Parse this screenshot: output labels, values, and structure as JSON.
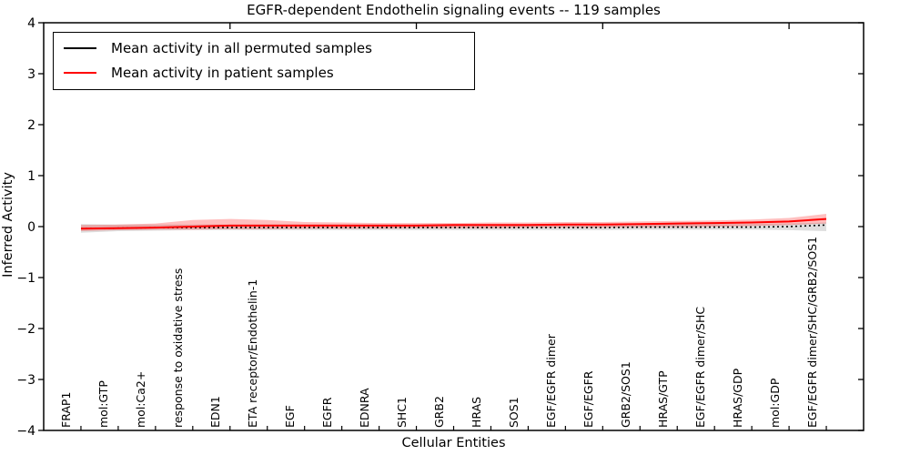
{
  "title": "EGFR-dependent Endothelin signaling events -- 119 samples",
  "legend": {
    "items": [
      {
        "label": "Mean activity in all permuted samples",
        "color": "#000000"
      },
      {
        "label": "Mean activity in patient samples",
        "color": "#ff0000"
      }
    ],
    "position": "upper left"
  },
  "axes": {
    "xlabel": "Cellular Entities",
    "ylabel": "Inferred Activity",
    "ytick_labels": [
      "4",
      "3",
      "2",
      "1",
      "0",
      "−1",
      "−2",
      "−3",
      "−4"
    ]
  },
  "chart_data": {
    "type": "line",
    "title": "EGFR-dependent Endothelin signaling events -- 119 samples",
    "xlabel": "Cellular Entities",
    "ylabel": "Inferred Activity",
    "ylim": [
      -4,
      4
    ],
    "yticks": [
      4,
      3,
      2,
      1,
      0,
      -1,
      -2,
      -3,
      -4
    ],
    "xlim": [
      0,
      22
    ],
    "grid": false,
    "legend_position": "upper left",
    "categories": [
      "FRAP1",
      "mol:GTP",
      "mol:Ca2+",
      "response to oxidative stress",
      "EDN1",
      "ETA receptor/Endothelin-1",
      "EGF",
      "EGFR",
      "EDNRA",
      "SHC1",
      "GRB2",
      "HRAS",
      "SOS1",
      "EGF/EGFR dimer",
      "EGF/EGFR",
      "GRB2/SOS1",
      "HRAS/GTP",
      "EGF/EGFR dimer/SHC",
      "HRAS/GDP",
      "mol:GDP",
      "EGF/EGFR dimer/SHC/GRB2/SOS1"
    ],
    "x_positions": [
      1,
      2,
      3,
      4,
      5,
      6,
      7,
      8,
      9,
      10,
      11,
      12,
      13,
      14,
      15,
      16,
      17,
      18,
      19,
      20,
      21
    ],
    "top_ticks_x": [
      5,
      10,
      15,
      20
    ],
    "series": [
      {
        "name": "Mean activity in all permuted samples",
        "color": "#000000",
        "style": "dotted",
        "values": [
          -0.04,
          -0.03,
          -0.02,
          -0.02,
          -0.02,
          -0.02,
          -0.02,
          -0.02,
          -0.02,
          -0.02,
          -0.02,
          -0.02,
          -0.02,
          -0.02,
          -0.02,
          -0.01,
          -0.01,
          -0.01,
          -0.01,
          0.0,
          0.03
        ]
      },
      {
        "name": "Mean activity in patient samples",
        "color": "#ff0000",
        "style": "solid",
        "values": [
          -0.04,
          -0.03,
          -0.02,
          0.0,
          0.02,
          0.02,
          0.02,
          0.02,
          0.02,
          0.02,
          0.03,
          0.03,
          0.03,
          0.04,
          0.04,
          0.05,
          0.06,
          0.07,
          0.08,
          0.1,
          0.15
        ]
      }
    ],
    "bands": [
      {
        "name": "permuted samples range",
        "color": "#999999",
        "opacity": 0.32,
        "upper": [
          0.05,
          0.04,
          0.04,
          0.04,
          0.04,
          0.04,
          0.04,
          0.04,
          0.04,
          0.04,
          0.04,
          0.04,
          0.04,
          0.04,
          0.04,
          0.04,
          0.05,
          0.05,
          0.05,
          0.06,
          0.08
        ],
        "lower": [
          -0.12,
          -0.09,
          -0.08,
          -0.07,
          -0.07,
          -0.07,
          -0.07,
          -0.07,
          -0.07,
          -0.07,
          -0.07,
          -0.07,
          -0.07,
          -0.07,
          -0.07,
          -0.06,
          -0.06,
          -0.06,
          -0.06,
          -0.07,
          -0.09
        ]
      },
      {
        "name": "patient samples range",
        "color": "#ff0000",
        "opacity": 0.25,
        "upper": [
          0.03,
          0.04,
          0.06,
          0.13,
          0.15,
          0.13,
          0.09,
          0.08,
          0.07,
          0.07,
          0.07,
          0.08,
          0.08,
          0.09,
          0.09,
          0.1,
          0.11,
          0.12,
          0.14,
          0.17,
          0.25
        ],
        "lower": [
          -0.09,
          -0.07,
          -0.06,
          -0.06,
          -0.05,
          -0.05,
          -0.04,
          -0.04,
          -0.04,
          -0.03,
          -0.03,
          -0.03,
          -0.02,
          -0.02,
          -0.02,
          -0.01,
          -0.01,
          0.0,
          0.01,
          0.03,
          0.06
        ]
      }
    ]
  }
}
